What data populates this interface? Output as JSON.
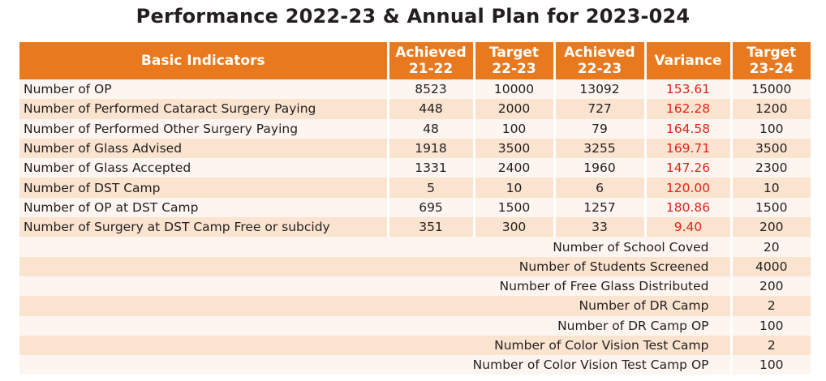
{
  "title": "Performance 2022-23 & Annual Plan for 2023-024",
  "headers": {
    "indicator": "Basic Indicators",
    "achieved_2122": [
      "Achieved",
      "21-22"
    ],
    "target_2223": [
      "Target",
      "22-23"
    ],
    "achieved_2223": [
      "Achieved",
      "22-23"
    ],
    "variance": "Variance",
    "target_2324": [
      "Target",
      "23-24"
    ]
  },
  "rows": [
    {
      "indicator": "Number of OP",
      "achieved_2122": "8523",
      "target_2223": "10000",
      "achieved_2223": "13092",
      "variance": "153.61",
      "target_2324": "15000"
    },
    {
      "indicator": "Number of Performed Cataract Surgery Paying",
      "achieved_2122": "448",
      "target_2223": "2000",
      "achieved_2223": "727",
      "variance": "162.28",
      "target_2324": "1200"
    },
    {
      "indicator": "Number of Performed Other Surgery Paying",
      "achieved_2122": "48",
      "target_2223": "100",
      "achieved_2223": "79",
      "variance": "164.58",
      "target_2324": "100"
    },
    {
      "indicator": "Number of Glass Advised",
      "achieved_2122": "1918",
      "target_2223": "3500",
      "achieved_2223": "3255",
      "variance": "169.71",
      "target_2324": "3500"
    },
    {
      "indicator": "Number of Glass Accepted",
      "achieved_2122": "1331",
      "target_2223": "2400",
      "achieved_2223": "1960",
      "variance": "147.26",
      "target_2324": "2300"
    },
    {
      "indicator": "Number of DST Camp",
      "achieved_2122": "5",
      "target_2223": "10",
      "achieved_2223": "6",
      "variance": "120.00",
      "target_2324": "10"
    },
    {
      "indicator": "Number of OP at DST Camp",
      "achieved_2122": "695",
      "target_2223": "1500",
      "achieved_2223": "1257",
      "variance": "180.86",
      "target_2324": "1500"
    },
    {
      "indicator": "Number of Surgery at DST Camp Free or subcidy",
      "achieved_2122": "351",
      "target_2223": "300",
      "achieved_2223": "33",
      "variance": "9.40",
      "target_2324": "200"
    }
  ],
  "plan_rows": [
    {
      "indicator": "Number of School Coved",
      "target_2324": "20"
    },
    {
      "indicator": "Number of Students Screened",
      "target_2324": "4000"
    },
    {
      "indicator": "Number of Free Glass Distributed",
      "target_2324": "200"
    },
    {
      "indicator": "Number of DR Camp",
      "target_2324": "2"
    },
    {
      "indicator": "Number of DR Camp OP",
      "target_2324": "100"
    },
    {
      "indicator": "Number of Color Vision Test Camp",
      "target_2324": "2"
    },
    {
      "indicator": "Number of Color Vision Test Camp OP",
      "target_2324": "100"
    }
  ],
  "colors": {
    "header_bg": "#e8791e",
    "row_light": "#fdf5ef",
    "row_dark": "#fae3cf",
    "variance_text": "#e1251b"
  }
}
